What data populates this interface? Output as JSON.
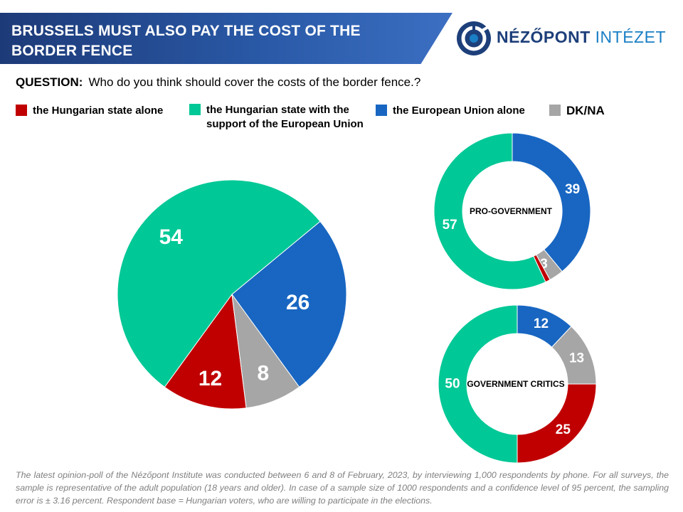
{
  "header": {
    "title": "BRUSSELS MUST ALSO PAY THE COST OF THE BORDER FENCE",
    "logo_name": "NÉZŐPONT",
    "logo_suffix": "INTÉZET"
  },
  "question": {
    "label": "QUESTION:",
    "text": "Who do you think should cover the costs of the border fence.?"
  },
  "legend": [
    {
      "label": "the Hungarian state alone",
      "color": "#c00000"
    },
    {
      "label": "the Hungarian state with the support of the European Union",
      "color": "#00c896"
    },
    {
      "label": "the European Union alone",
      "color": "#1866c2"
    },
    {
      "label": "DK/NA",
      "color": "#a6a6a6"
    }
  ],
  "chart_data": [
    {
      "type": "pie",
      "title": "",
      "categories": [
        "the Hungarian state alone",
        "the Hungarian state with the support of the European Union",
        "the European Union alone",
        "DK/NA"
      ],
      "values": [
        12,
        54,
        26,
        8
      ],
      "colors": [
        "#c00000",
        "#00c896",
        "#1866c2",
        "#a6a6a6"
      ]
    },
    {
      "type": "pie",
      "title": "PRO-GOVERNMENT",
      "categories": [
        "the Hungarian state alone",
        "the Hungarian state with the support of the European Union",
        "the European Union alone",
        "DK/NA"
      ],
      "values": [
        1,
        57,
        39,
        3
      ],
      "colors": [
        "#c00000",
        "#00c896",
        "#1866c2",
        "#a6a6a6"
      ]
    },
    {
      "type": "pie",
      "title": "GOVERNMENT CRITICS",
      "categories": [
        "the Hungarian state alone",
        "the Hungarian state with the support of the European Union",
        "the European Union alone",
        "DK/NA"
      ],
      "values": [
        25,
        50,
        12,
        13
      ],
      "colors": [
        "#c00000",
        "#00c896",
        "#1866c2",
        "#a6a6a6"
      ]
    }
  ],
  "footnote": "The latest opinion-poll of the Nézőpont Institute was conducted between 6 and 8 of February, 2023, by interviewing 1,000 respondents by phone. For all surveys, the sample is representative of the adult population (18 years and older). In case of a sample size of 1000 respondents and a confidence level of 95 percent, the sampling error is ± 3.16 percent. Respondent base = Hungarian voters, who are willing to participate in the elections."
}
